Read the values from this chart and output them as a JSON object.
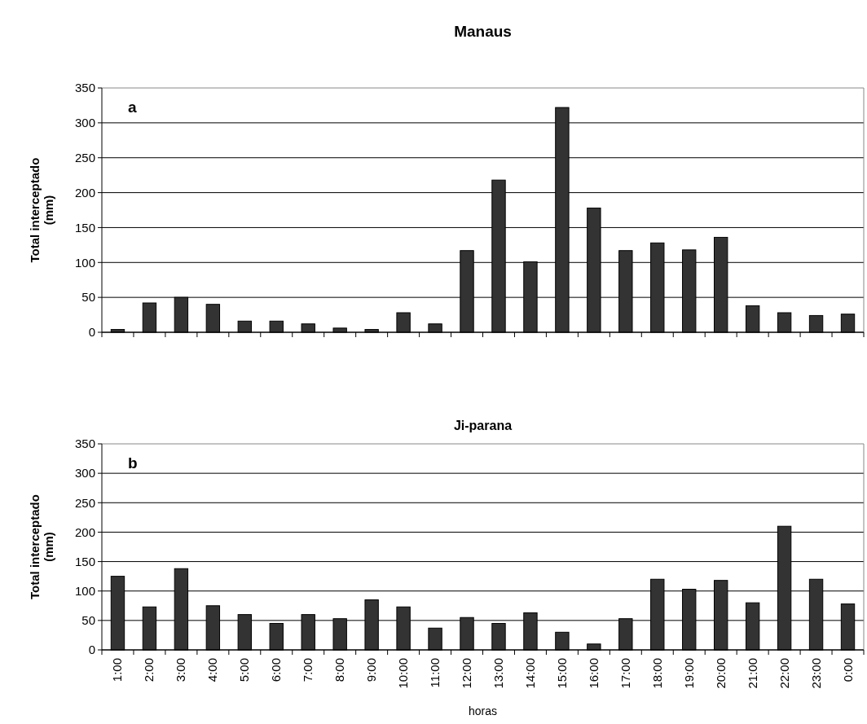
{
  "chart_data": [
    {
      "type": "bar",
      "title": "Manaus",
      "ylabel": "Total interceptado\n(mm)",
      "annotations": [
        "a"
      ],
      "categories": [
        null,
        null,
        null,
        null,
        null,
        null,
        null,
        null,
        null,
        null,
        null,
        null,
        null,
        null,
        null,
        null,
        null,
        null,
        null,
        null,
        null,
        null,
        null,
        null
      ],
      "values": [
        4,
        42,
        50,
        40,
        16,
        16,
        12,
        6,
        4,
        28,
        12,
        117,
        218,
        101,
        322,
        178,
        117,
        128,
        118,
        136,
        38,
        28,
        24,
        26
      ],
      "color": "#333333",
      "ylim": [
        0,
        350
      ],
      "yticks": [
        0,
        50,
        100,
        150,
        200,
        250,
        300,
        350
      ],
      "grid": "y",
      "tick_labels": "y"
    },
    {
      "type": "bar",
      "title": "Ji-parana",
      "xlabel": "horas",
      "ylabel": "Total interceptado\n(mm)",
      "annotations": [
        "b"
      ],
      "categories": [
        "1:00",
        "2:00",
        "3:00",
        "4:00",
        "5:00",
        "6:00",
        "7:00",
        "8:00",
        "9:00",
        "10:00",
        "11:00",
        "12:00",
        "13:00",
        "14:00",
        "15:00",
        "16:00",
        "17:00",
        "18:00",
        "19:00",
        "20:00",
        "21:00",
        "22:00",
        "23:00",
        "0:00"
      ],
      "values": [
        125,
        73,
        138,
        75,
        60,
        45,
        60,
        53,
        85,
        73,
        37,
        55,
        45,
        63,
        30,
        10,
        53,
        120,
        103,
        118,
        80,
        210,
        120,
        78
      ],
      "color": "#333333",
      "ylim": [
        0,
        350
      ],
      "yticks": [
        0,
        50,
        100,
        150,
        200,
        250,
        300,
        350
      ],
      "grid": "y"
    }
  ]
}
